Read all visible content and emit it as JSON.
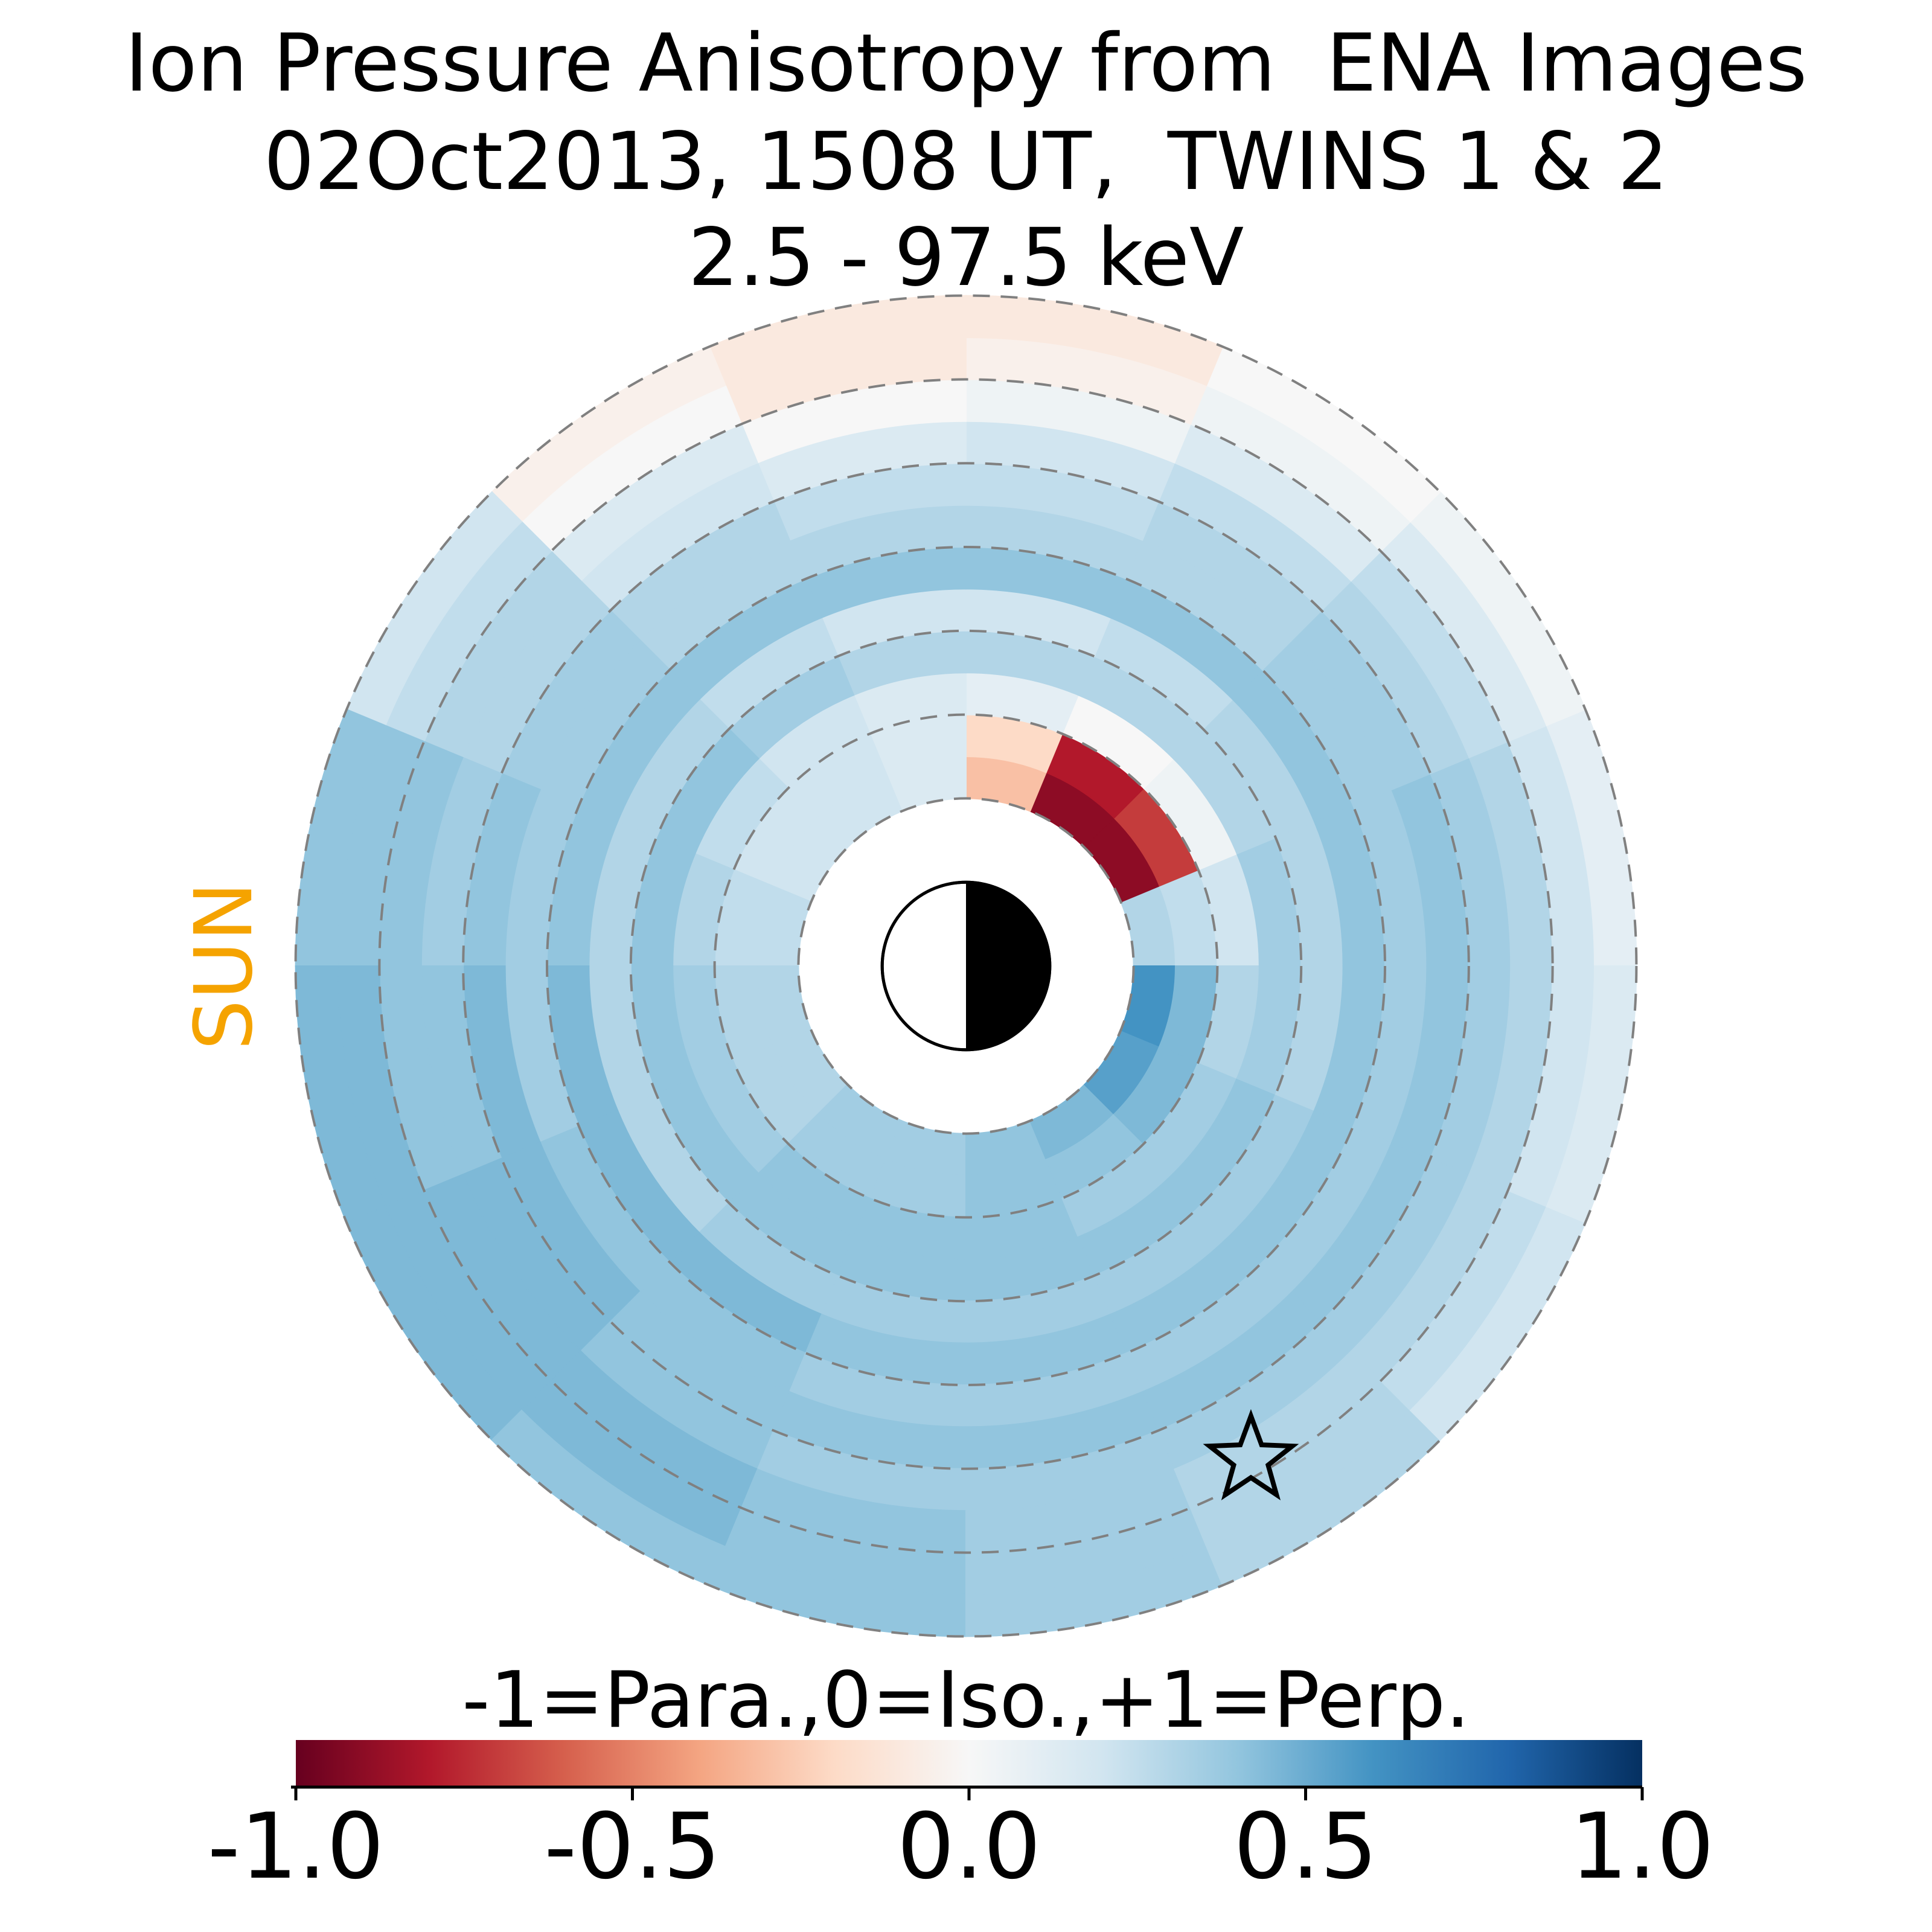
{
  "chart_data": {
    "type": "polar_heatmap",
    "title": [
      "Ion Pressure Anisotropy from  ENA Images",
      "02Oct2013, 1508 UT,  TWINS 1 & 2",
      "2.5 - 97.5 keV"
    ],
    "sun_label": "SUN",
    "colorbar_label": "-1=Para.,0=Iso.,+1=Perp.",
    "r_edges": [
      2,
      2.5,
      3,
      3.5,
      4,
      4.5,
      5,
      5.5,
      6,
      6.5,
      7,
      7.5,
      8
    ],
    "theta_edges": [
      0,
      22.5,
      45,
      67.5,
      90,
      112.5,
      135,
      157.5,
      180,
      202.5,
      225,
      247.5,
      270,
      292.5,
      315,
      337.5,
      360
    ],
    "values": [
      [
        0.3,
        -0.9,
        -0.9,
        -0.3,
        0.15,
        0.2,
        0.2,
        0.25,
        0.3,
        0.3,
        0.35,
        0.35,
        0.4,
        0.45,
        0.55,
        0.6
      ],
      [
        0.25,
        -0.7,
        -0.8,
        -0.2,
        0.15,
        0.2,
        0.2,
        0.25,
        0.3,
        0.3,
        0.35,
        0.35,
        0.4,
        0.4,
        0.45,
        0.45
      ],
      [
        0.2,
        0.05,
        0,
        0.1,
        0.15,
        0.2,
        0.25,
        0.3,
        0.35,
        0.35,
        0.4,
        0.4,
        0.4,
        0.35,
        0.35,
        0.3
      ],
      [
        0.35,
        0.3,
        0.3,
        0.3,
        0.3,
        0.35,
        0.4,
        0.4,
        0.4,
        0.4,
        0.4,
        0.4,
        0.4,
        0.4,
        0.4,
        0.35
      ],
      [
        0.3,
        0.3,
        0.25,
        0.2,
        0.2,
        0.25,
        0.3,
        0.3,
        0.3,
        0.3,
        0.35,
        0.35,
        0.35,
        0.35,
        0.35,
        0.3
      ],
      [
        0.4,
        0.4,
        0.4,
        0.4,
        0.4,
        0.4,
        0.4,
        0.4,
        0.45,
        0.45,
        0.45,
        0.4,
        0.4,
        0.4,
        0.4,
        0.4
      ],
      [
        0.35,
        0.35,
        0.3,
        0.3,
        0.3,
        0.3,
        0.35,
        0.35,
        0.35,
        0.4,
        0.4,
        0.35,
        0.35,
        0.35,
        0.35,
        0.35
      ],
      [
        0.4,
        0.35,
        0.3,
        0.25,
        0.25,
        0.3,
        0.35,
        0.4,
        0.45,
        0.45,
        0.4,
        0.4,
        0.4,
        0.4,
        0.4,
        0.4
      ],
      [
        0.35,
        0.3,
        0.25,
        0.2,
        0.15,
        0.2,
        0.3,
        0.35,
        0.4,
        0.45,
        0.4,
        0.35,
        0.35,
        0.35,
        0.35,
        0.35
      ],
      [
        0.3,
        0.25,
        0.15,
        0.05,
        0,
        0.15,
        0.3,
        0.4,
        0.4,
        0.45,
        0.45,
        0.4,
        0.35,
        0.3,
        0.3,
        0.3
      ],
      [
        0.2,
        0.15,
        0.05,
        -0.05,
        -0.1,
        0,
        0.25,
        0.4,
        0.45,
        0.45,
        0.45,
        0.4,
        0.35,
        0.3,
        0.25,
        0.2
      ],
      [
        0.1,
        0.05,
        0,
        -0.1,
        -0.1,
        -0.05,
        0.2,
        0.4,
        0.45,
        0.45,
        0.4,
        0.4,
        0.35,
        0.3,
        0.2,
        0.15
      ]
    ],
    "rings": [
      2,
      3,
      4,
      5,
      6,
      7,
      8
    ],
    "star": {
      "r": 6.8,
      "theta": 300
    },
    "clim": [
      -1,
      1
    ],
    "cticks": [
      {
        "value": -1,
        "label": "-1.0"
      },
      -0.5,
      {
        "value": 0,
        "label": "0.0"
      },
      0.5,
      {
        "value": 1,
        "label": "1.0"
      }
    ],
    "colormap": [
      "#67001f",
      "#b2182b",
      "#d6604d",
      "#f4a582",
      "#fddbc7",
      "#f7f7f7",
      "#d1e5f0",
      "#92c5de",
      "#4393c3",
      "#2166ac",
      "#053061"
    ],
    "sun_color": "#f5a300"
  }
}
